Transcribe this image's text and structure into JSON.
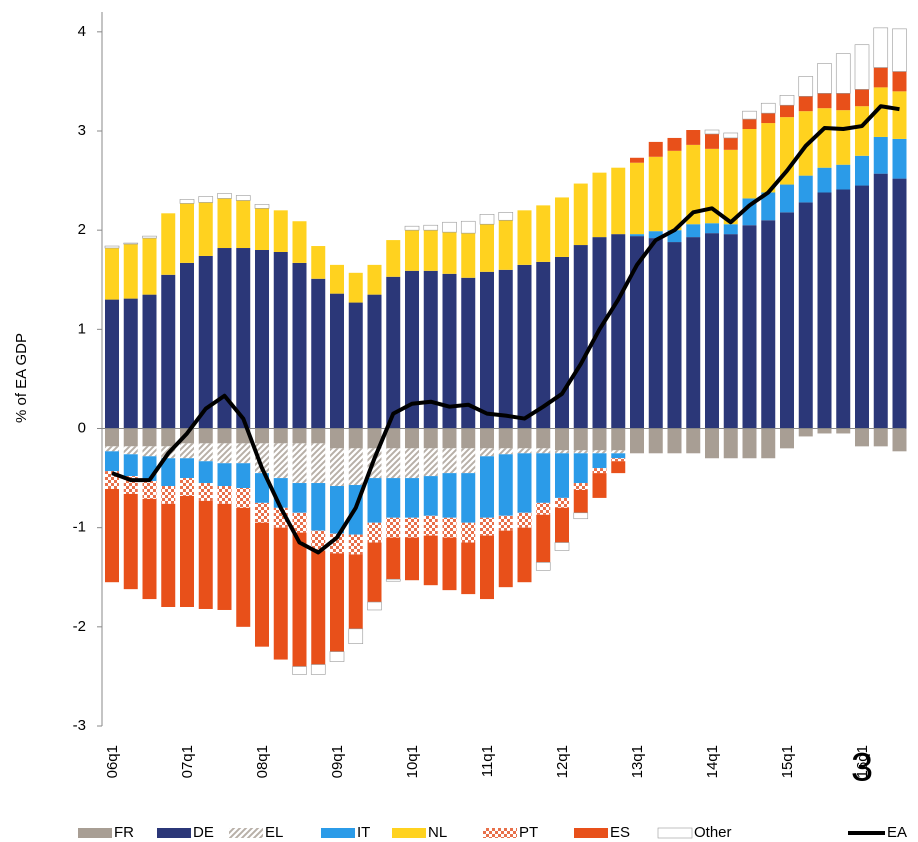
{
  "chart_data": {
    "type": "bar",
    "stacked": true,
    "y_label": "% of  EA GDP",
    "annotation": "3",
    "categories": [
      "06q1",
      null,
      null,
      null,
      "07q1",
      null,
      null,
      null,
      "08q1",
      null,
      null,
      null,
      "09q1",
      null,
      null,
      null,
      "10q1",
      null,
      null,
      null,
      "11q1",
      null,
      null,
      null,
      "12q1",
      null,
      null,
      null,
      "13q1",
      null,
      null,
      null,
      "14q1",
      null,
      null,
      null,
      "15q1",
      null,
      null,
      null,
      "16q1",
      null,
      null
    ],
    "ylim": [
      -3,
      4.2
    ],
    "yticks": [
      -3,
      -2,
      -1,
      0,
      1,
      2,
      3,
      4
    ],
    "series": [
      {
        "name": "FR",
        "color": "#a89e94",
        "values": [
          -0.18,
          -0.18,
          -0.18,
          -0.18,
          -0.15,
          -0.15,
          -0.15,
          -0.15,
          -0.15,
          -0.15,
          -0.15,
          -0.15,
          -0.2,
          -0.2,
          -0.2,
          -0.2,
          -0.2,
          -0.2,
          -0.2,
          -0.2,
          -0.2,
          -0.2,
          -0.2,
          -0.2,
          -0.22,
          -0.22,
          -0.22,
          -0.22,
          -0.25,
          -0.25,
          -0.25,
          -0.25,
          -0.3,
          -0.3,
          -0.3,
          -0.3,
          -0.2,
          -0.08,
          -0.05,
          -0.05,
          -0.18,
          -0.18,
          -0.23
        ]
      },
      {
        "name": "DE",
        "color": "#2b3778",
        "values": [
          1.3,
          1.31,
          1.35,
          1.55,
          1.67,
          1.74,
          1.82,
          1.82,
          1.8,
          1.78,
          1.67,
          1.51,
          1.36,
          1.27,
          1.35,
          1.53,
          1.59,
          1.59,
          1.56,
          1.52,
          1.58,
          1.6,
          1.65,
          1.68,
          1.73,
          1.85,
          1.93,
          1.96,
          1.94,
          1.92,
          1.88,
          1.93,
          1.97,
          1.96,
          2.05,
          2.1,
          2.18,
          2.28,
          2.38,
          2.41,
          2.45,
          2.57,
          2.52
        ]
      },
      {
        "name": "EL",
        "color": "#b8b0a8",
        "pattern": "diagonal",
        "values": [
          -0.05,
          -0.08,
          -0.1,
          -0.12,
          -0.15,
          -0.18,
          -0.2,
          -0.2,
          -0.3,
          -0.35,
          -0.4,
          -0.4,
          -0.38,
          -0.37,
          -0.3,
          -0.3,
          -0.3,
          -0.28,
          -0.25,
          -0.25,
          -0.08,
          -0.06,
          -0.05,
          -0.05,
          -0.03,
          -0.03,
          -0.03,
          -0.03,
          0,
          0,
          0,
          0,
          0,
          0,
          0,
          0,
          0,
          0,
          0,
          0,
          0,
          0,
          0
        ]
      },
      {
        "name": "IT",
        "color": "#2b9be8",
        "values": [
          -0.2,
          -0.22,
          -0.25,
          -0.28,
          -0.2,
          -0.22,
          -0.23,
          -0.25,
          -0.3,
          -0.3,
          -0.3,
          -0.48,
          -0.48,
          -0.5,
          -0.45,
          -0.4,
          -0.4,
          -0.4,
          -0.45,
          -0.5,
          -0.62,
          -0.62,
          -0.6,
          -0.5,
          -0.45,
          -0.3,
          -0.15,
          -0.05,
          0.02,
          0.07,
          0.12,
          0.13,
          0.1,
          0.1,
          0.27,
          0.28,
          0.28,
          0.27,
          0.25,
          0.25,
          0.3,
          0.37,
          0.4
        ]
      },
      {
        "name": "NL",
        "color": "#ffd21f",
        "values": [
          0.52,
          0.55,
          0.57,
          0.62,
          0.6,
          0.54,
          0.5,
          0.48,
          0.42,
          0.42,
          0.42,
          0.33,
          0.29,
          0.3,
          0.3,
          0.37,
          0.41,
          0.41,
          0.42,
          0.45,
          0.48,
          0.5,
          0.55,
          0.57,
          0.6,
          0.62,
          0.65,
          0.67,
          0.72,
          0.75,
          0.8,
          0.8,
          0.75,
          0.75,
          0.7,
          0.7,
          0.68,
          0.65,
          0.6,
          0.55,
          0.5,
          0.5,
          0.48
        ]
      },
      {
        "name": "PT",
        "color": "#e8704a",
        "pattern": "checker",
        "values": [
          -0.18,
          -0.18,
          -0.18,
          -0.18,
          -0.18,
          -0.18,
          -0.18,
          -0.2,
          -0.2,
          -0.2,
          -0.2,
          -0.2,
          -0.2,
          -0.2,
          -0.2,
          -0.2,
          -0.2,
          -0.2,
          -0.2,
          -0.2,
          -0.18,
          -0.15,
          -0.15,
          -0.12,
          -0.1,
          -0.07,
          -0.05,
          -0.03,
          0,
          0,
          0,
          0,
          0,
          0,
          0,
          0,
          0,
          0,
          0,
          0,
          0,
          0,
          0
        ]
      },
      {
        "name": "ES",
        "color": "#e8501a",
        "values": [
          -0.94,
          -0.96,
          -1.01,
          -1.04,
          -1.12,
          -1.09,
          -1.07,
          -1.2,
          -1.25,
          -1.33,
          -1.35,
          -1.15,
          -0.99,
          -0.75,
          -0.6,
          -0.42,
          -0.43,
          -0.5,
          -0.53,
          -0.52,
          -0.64,
          -0.57,
          -0.55,
          -0.48,
          -0.35,
          -0.23,
          -0.25,
          -0.12,
          0.05,
          0.15,
          0.13,
          0.15,
          0.15,
          0.12,
          0.1,
          0.1,
          0.12,
          0.15,
          0.15,
          0.17,
          0.17,
          0.2,
          0.2
        ]
      },
      {
        "name": "Other",
        "color": "#ffffff",
        "values": [
          0.02,
          0.01,
          0.02,
          0,
          0.04,
          0.06,
          0.05,
          0.05,
          0.04,
          0,
          -0.08,
          -0.1,
          -0.1,
          -0.15,
          -0.08,
          -0.02,
          0.04,
          0.05,
          0.1,
          0.12,
          0.1,
          0.08,
          0,
          -0.08,
          -0.08,
          -0.06,
          0,
          0,
          0,
          0,
          0,
          0,
          0.04,
          0.05,
          0.08,
          0.1,
          0.1,
          0.2,
          0.3,
          0.4,
          0.45,
          0.4,
          0.43
        ]
      },
      {
        "name": "EA",
        "type": "line",
        "color": "#000000",
        "values": [
          -0.45,
          -0.52,
          -0.52,
          -0.25,
          -0.05,
          0.2,
          0.33,
          0.1,
          -0.4,
          -0.8,
          -1.15,
          -1.25,
          -1.1,
          -0.8,
          -0.3,
          0.15,
          0.25,
          0.27,
          0.22,
          0.24,
          0.15,
          0.13,
          0.1,
          0.22,
          0.35,
          0.65,
          1.0,
          1.3,
          1.65,
          1.9,
          2.0,
          2.18,
          2.22,
          2.08,
          2.25,
          2.38,
          2.6,
          2.85,
          3.03,
          3.02,
          3.05,
          3.25,
          3.22
        ]
      }
    ]
  }
}
